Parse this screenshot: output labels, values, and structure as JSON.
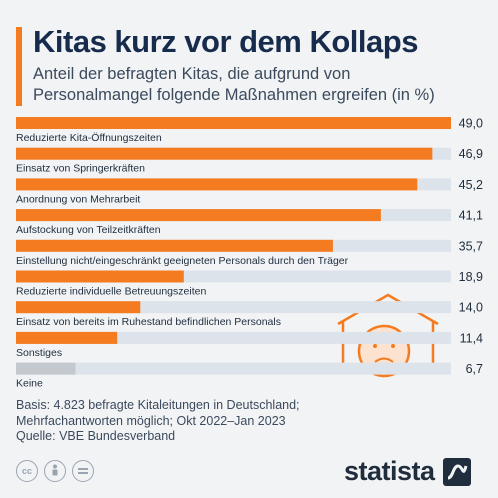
{
  "header": {
    "title": "Kitas kurz vor dem Kollaps",
    "subtitle": "Anteil der befragten Kitas, die aufgrund von Personalmangel folgende Maßnahmen ergreifen (in %)"
  },
  "chart_data": {
    "type": "bar",
    "orientation": "horizontal",
    "title": "Kitas kurz vor dem Kollaps",
    "xlim": [
      0,
      49
    ],
    "grid": false,
    "categories": [
      "Reduzierte Kita-Öffnungszeiten",
      "Einsatz von Springerkräften",
      "Anordnung von Mehrarbeit",
      "Aufstockung von Teilzeitkräften",
      "Einstellung nicht/eingeschränkt geeigneten Personals durch den Träger",
      "Reduzierte individuelle Betreuungszeiten",
      "Einsatz von bereits im Ruhestand befindlichen Personals",
      "Sonstiges",
      "Keine"
    ],
    "values": [
      49.0,
      46.9,
      45.2,
      41.1,
      35.7,
      18.9,
      14.0,
      11.4,
      6.7
    ],
    "value_labels": [
      "49,0",
      "46,9",
      "45,2",
      "41,1",
      "35,7",
      "18,9",
      "14,0",
      "11,4",
      "6,7"
    ],
    "bar_colors": [
      "#f47b20",
      "#f47b20",
      "#f47b20",
      "#f47b20",
      "#f47b20",
      "#f47b20",
      "#f47b20",
      "#f47b20",
      "#c4c9cf"
    ],
    "track_color": "#dde3ea"
  },
  "footnote": {
    "basis": "Basis: 4.823 befragte Kitaleitungen in Deutschland;",
    "note": "Mehrfachantworten möglich; Okt 2022–Jan 2023",
    "source": "Quelle: VBE Bundesverband"
  },
  "license": {
    "icons": [
      "creative-commons-icon",
      "attribution-icon",
      "no-derivatives-icon"
    ],
    "cc_label": "cc"
  },
  "brand": {
    "name": "statista"
  },
  "illustration": {
    "icon": "sad-child-under-roof-icon",
    "color": "#f47b20"
  }
}
